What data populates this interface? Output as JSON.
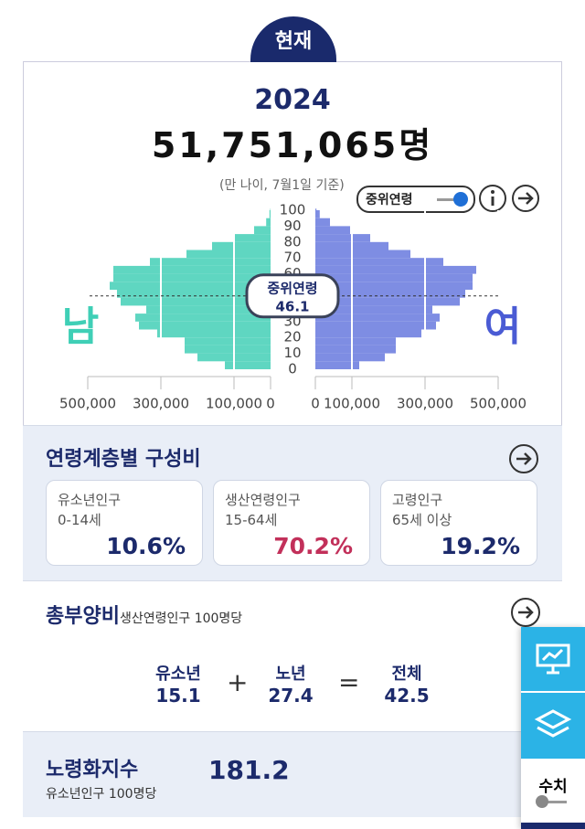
{
  "header": {
    "badge": "현재",
    "year": "2024",
    "total": "51,751,065명",
    "note": "(만 나이, 7월1일 기준)",
    "toggle": "중위연령"
  },
  "pyramid": {
    "male_label": "남",
    "female_label": "여",
    "median_label": "중위연령",
    "median_value": 46.1,
    "age_groups": [
      0,
      5,
      10,
      15,
      20,
      25,
      30,
      35,
      40,
      45,
      50,
      55,
      60,
      65,
      70,
      75,
      80,
      85,
      90,
      95,
      100
    ],
    "male": [
      125000,
      200000,
      235000,
      235000,
      310000,
      360000,
      370000,
      340000,
      410000,
      420000,
      440000,
      430000,
      430000,
      330000,
      230000,
      160000,
      100000,
      45000,
      12000,
      3000,
      1000
    ],
    "female": [
      120000,
      190000,
      220000,
      220000,
      290000,
      330000,
      340000,
      320000,
      395000,
      410000,
      430000,
      430000,
      440000,
      350000,
      260000,
      200000,
      150000,
      95000,
      40000,
      12000,
      3000
    ],
    "xlim": [
      0,
      500000
    ],
    "xticks_left": [
      {
        "value": 500000,
        "label": "500,000"
      },
      {
        "value": 300000,
        "label": "300,000"
      },
      {
        "value": 100000,
        "label": "100,000"
      },
      0
    ],
    "xticks_right": [
      0,
      {
        "value": 100000,
        "label": "100,000"
      },
      {
        "value": 300000,
        "label": "300,000"
      },
      {
        "value": 500000,
        "label": "500,000"
      }
    ],
    "ylim": [
      0,
      100
    ],
    "yticks": [
      0,
      10,
      20,
      30,
      40,
      50,
      60,
      70,
      80,
      90,
      100
    ]
  },
  "composition": {
    "title": "연령계층별 구성비",
    "cards": [
      {
        "name": "유소년인구",
        "range": "0-14세",
        "value": "10.6%"
      },
      {
        "name": "생산연령인구",
        "range": "15-64세",
        "value": "70.2%"
      },
      {
        "name": "고령인구",
        "range": "65세 이상",
        "value": "19.2%"
      }
    ]
  },
  "dependency": {
    "title": "총부양비",
    "subtitle": "생산연령인구 100명당",
    "plus": "+",
    "equals": "=",
    "items": [
      {
        "name": "유소년",
        "value": "15.1"
      },
      {
        "name": "노년",
        "value": "27.4"
      },
      {
        "name": "전체",
        "value": "42.5"
      }
    ]
  },
  "aging": {
    "title": "노령화지수",
    "subtitle": "유소년인구 100명당",
    "value": "181.2"
  },
  "side": {
    "label": "수치"
  }
}
